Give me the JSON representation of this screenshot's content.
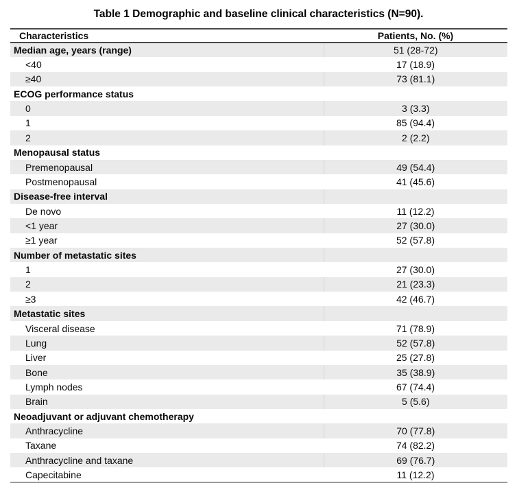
{
  "title": "Table 1 Demographic and baseline clinical characteristics (N=90).",
  "table": {
    "columns": [
      "Characteristics",
      "Patients, No. (%)"
    ],
    "rows": [
      {
        "label": "Median age, years (range)",
        "value": "51 (28-72)",
        "section": true
      },
      {
        "label": "<40",
        "value": "17 (18.9)",
        "section": false
      },
      {
        "label": "≥40",
        "value": "73 (81.1)",
        "section": false
      },
      {
        "label": "ECOG performance status",
        "value": "",
        "section": true
      },
      {
        "label": "0",
        "value": "3 (3.3)",
        "section": false
      },
      {
        "label": "1",
        "value": "85 (94.4)",
        "section": false
      },
      {
        "label": "2",
        "value": "2 (2.2)",
        "section": false
      },
      {
        "label": "Menopausal status",
        "value": "",
        "section": true
      },
      {
        "label": "Premenopausal",
        "value": "49 (54.4)",
        "section": false
      },
      {
        "label": "Postmenopausal",
        "value": "41 (45.6)",
        "section": false
      },
      {
        "label": "Disease-free interval",
        "value": "",
        "section": true
      },
      {
        "label": "De novo",
        "value": "11 (12.2)",
        "section": false
      },
      {
        "label": "<1 year",
        "value": "27 (30.0)",
        "section": false
      },
      {
        "label": "≥1 year",
        "value": "52 (57.8)",
        "section": false
      },
      {
        "label": "Number of metastatic sites",
        "value": "",
        "section": true
      },
      {
        "label": "1",
        "value": "27 (30.0)",
        "section": false
      },
      {
        "label": "2",
        "value": "21 (23.3)",
        "section": false
      },
      {
        "label": "≥3",
        "value": "42 (46.7)",
        "section": false
      },
      {
        "label": "Metastatic sites",
        "value": "",
        "section": true
      },
      {
        "label": "Visceral disease",
        "value": "71 (78.9)",
        "section": false
      },
      {
        "label": "Lung",
        "value": "52 (57.8)",
        "section": false
      },
      {
        "label": "Liver",
        "value": "25 (27.8)",
        "section": false
      },
      {
        "label": "Bone",
        "value": "35 (38.9)",
        "section": false
      },
      {
        "label": "Lymph nodes",
        "value": "67 (74.4)",
        "section": false
      },
      {
        "label": "Brain",
        "value": "5 (5.6)",
        "section": false
      },
      {
        "label": "Neoadjuvant or adjuvant chemotherapy",
        "value": "",
        "section": true
      },
      {
        "label": "Anthracycline",
        "value": "70 (77.8)",
        "section": false
      },
      {
        "label": "Taxane",
        "value": "74 (82.2)",
        "section": false
      },
      {
        "label": "Anthracycline and taxane",
        "value": "69 (76.7)",
        "section": false
      },
      {
        "label": "Capecitabine",
        "value": "11 (12.2)",
        "section": false
      }
    ]
  },
  "colors": {
    "stripe": "#eaeaea",
    "border_dark": "#484848",
    "border_bottom": "#9b9b9b",
    "divider": "#d3d3d3"
  }
}
